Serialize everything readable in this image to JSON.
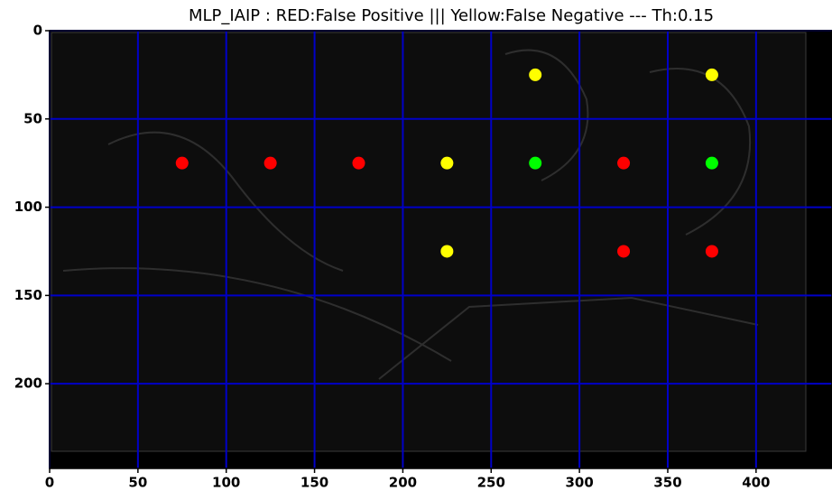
{
  "chart_data": {
    "type": "scatter",
    "title": "MLP_IAIP : RED:False Positive ||| Yellow:False Negative --- Th:0.15",
    "xlim": [
      0,
      443
    ],
    "ylim": [
      248,
      0
    ],
    "xticks": [
      0,
      50,
      100,
      150,
      200,
      250,
      300,
      350,
      400
    ],
    "yticks": [
      0,
      50,
      100,
      150,
      200
    ],
    "grid": true,
    "grid_color": "#0000c8",
    "series": [
      {
        "color": "#ff0000",
        "x": [
          75,
          125,
          175,
          325,
          325,
          375
        ],
        "values": [
          75,
          75,
          75,
          75,
          125,
          125
        ]
      },
      {
        "color": "#ffff00",
        "x": [
          275,
          375,
          225,
          225
        ],
        "values": [
          25,
          25,
          75,
          125
        ]
      },
      {
        "color": "#00ff00",
        "x": [
          275,
          375
        ],
        "values": [
          75,
          75
        ]
      }
    ]
  }
}
